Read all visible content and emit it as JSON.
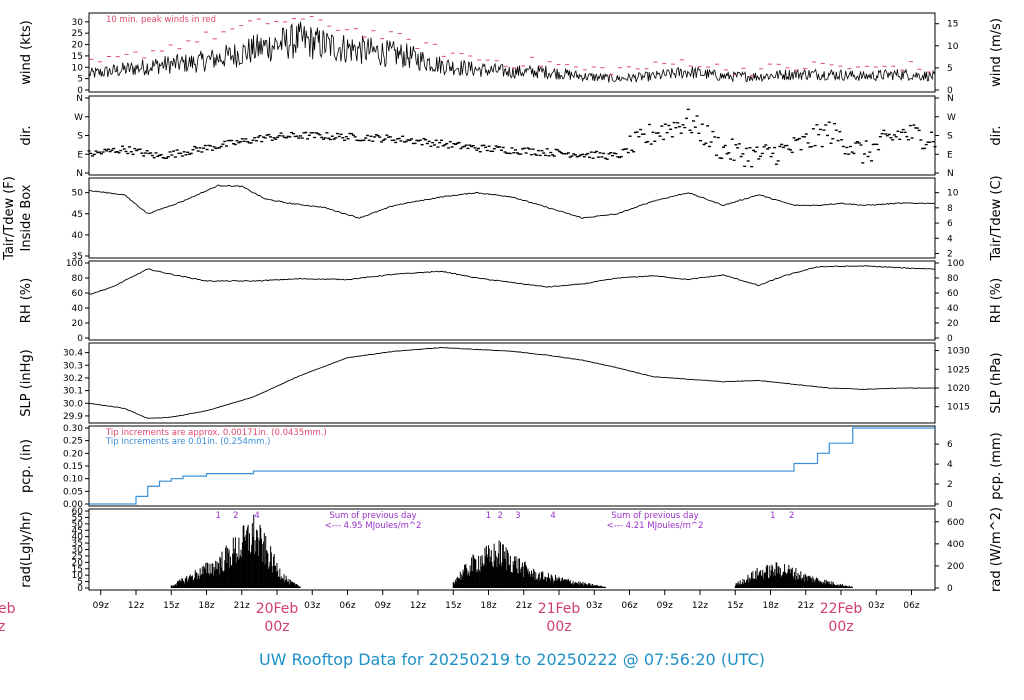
{
  "title": "UW Rooftop Data for 20250219  to  20250222 @ 07:56:20  (UTC)",
  "colors": {
    "peak": "#e04a6a",
    "tip_old": "#e04a6a",
    "tip_new": "#3a8fd8",
    "rad_note": "#9b30c8",
    "date": "#d0406a",
    "title": "#1e90c8"
  },
  "chart_data": [
    {
      "type": "line",
      "name": "wind",
      "ylabel_left": "wind (kts)",
      "ylabel_right": "wind (m/s)",
      "yticks_left": [
        "0",
        "5",
        "10",
        "15",
        "20",
        "25",
        "30"
      ],
      "yticks_right": [
        "0",
        "5",
        "10",
        "15"
      ],
      "ylim": [
        0,
        33
      ],
      "note": "10 min. peak winds in red",
      "series": [
        {
          "name": "wind speed",
          "x_hours": [
            0,
            3,
            6,
            9,
            12,
            15,
            18,
            21,
            24,
            27,
            30,
            33,
            36,
            39,
            42,
            45,
            48,
            51,
            54,
            57,
            60,
            63,
            66,
            69,
            72
          ],
          "values": [
            7,
            9,
            11,
            12,
            15,
            19,
            22,
            19,
            17,
            15,
            11,
            9,
            8,
            8,
            6,
            5,
            6,
            8,
            6,
            6,
            7,
            7,
            6,
            7,
            6
          ]
        },
        {
          "name": "10 min. peak",
          "x_hours": [
            0,
            3,
            6,
            9,
            12,
            15,
            18,
            21,
            24,
            27,
            30,
            33,
            36,
            39,
            42,
            45,
            48,
            51,
            54,
            57,
            60,
            63,
            66,
            69,
            72
          ],
          "values": [
            11,
            14,
            18,
            22,
            26,
            30,
            31,
            28,
            25,
            22,
            17,
            14,
            12,
            12,
            9,
            9,
            10,
            13,
            9,
            9,
            10,
            11,
            9,
            11,
            9
          ]
        }
      ]
    },
    {
      "type": "scatter",
      "name": "dir",
      "ylabel_left": "dir.",
      "ylabel_right": "dir.",
      "yticks_left": [
        "N",
        "E",
        "S",
        "W",
        "N"
      ],
      "yticks_right": [
        "N",
        "E",
        "S",
        "W",
        "N"
      ],
      "ylim": [
        0,
        360
      ],
      "series": [
        {
          "name": "direction",
          "x_hours": [
            0,
            3,
            6,
            9,
            12,
            15,
            18,
            21,
            24,
            27,
            30,
            33,
            36,
            39,
            42,
            45,
            48,
            51,
            54,
            57,
            60,
            63,
            66,
            69,
            72
          ],
          "values": [
            90,
            115,
            80,
            110,
            140,
            170,
            180,
            175,
            170,
            160,
            140,
            120,
            110,
            100,
            90,
            80,
            190,
            250,
            110,
            80,
            120,
            200,
            90,
            190,
            170
          ]
        }
      ]
    },
    {
      "type": "line",
      "name": "temp",
      "ylabel_left": "Inside Box",
      "ylabel_left2": "Tair/Tdew (F)",
      "ylabel_right": "Tair/Tdew (C)",
      "yticks_left": [
        "35",
        "40",
        "45",
        "50"
      ],
      "yticks_right": [
        "2",
        "4",
        "6",
        "8",
        "10"
      ],
      "ylim": [
        35,
        53
      ],
      "series": [
        {
          "name": "Tair",
          "x_hours": [
            0,
            3,
            5,
            8,
            11,
            13,
            15,
            17,
            20,
            23,
            26,
            30,
            33,
            36,
            39,
            42,
            45,
            48,
            51,
            54,
            57,
            60,
            62,
            64,
            66,
            69,
            72
          ],
          "values": [
            50.5,
            49.5,
            45,
            48,
            51.7,
            51.5,
            48.5,
            47.5,
            46.5,
            44,
            47,
            49,
            50,
            49,
            46.5,
            44,
            45,
            48,
            50,
            47,
            49.5,
            47,
            47,
            47.5,
            47,
            47.5,
            47.5
          ]
        }
      ]
    },
    {
      "type": "line",
      "name": "rh",
      "ylabel_left": "RH (%)",
      "ylabel_right": "RH (%)",
      "yticks_left": [
        "0",
        "20",
        "40",
        "60",
        "80",
        "100"
      ],
      "yticks_right": [
        "0",
        "20",
        "40",
        "60",
        "80",
        "100"
      ],
      "ylim": [
        0,
        100
      ],
      "series": [
        {
          "name": "RH",
          "x_hours": [
            0,
            2,
            5,
            7,
            10,
            14,
            18,
            22,
            26,
            30,
            33,
            36,
            39,
            42,
            45,
            48,
            51,
            54,
            57,
            59,
            62,
            66,
            70,
            72
          ],
          "values": [
            58,
            68,
            92,
            85,
            76,
            76,
            79,
            78,
            85,
            89,
            80,
            74,
            68,
            72,
            80,
            83,
            78,
            84,
            70,
            82,
            95,
            96,
            93,
            92
          ]
        }
      ]
    },
    {
      "type": "line",
      "name": "slp",
      "ylabel_left": "SLP (inHg)",
      "ylabel_right": "SLP (hPa)",
      "yticks_left": [
        "29.9",
        "30.0",
        "30.1",
        "30.2",
        "30.3",
        "30.4"
      ],
      "yticks_right": [
        "1015",
        "1020",
        "1025",
        "1030"
      ],
      "ylim": [
        29.86,
        30.46
      ],
      "series": [
        {
          "name": "SLP",
          "x_hours": [
            0,
            3,
            5,
            7,
            10,
            14,
            18,
            22,
            26,
            30,
            34,
            36,
            39,
            42,
            45,
            48,
            51,
            54,
            57,
            60,
            63,
            66,
            69,
            72
          ],
          "values": [
            30.0,
            29.96,
            29.88,
            29.89,
            29.94,
            30.05,
            30.22,
            30.36,
            30.41,
            30.44,
            30.42,
            30.41,
            30.38,
            30.34,
            30.28,
            30.21,
            30.19,
            30.17,
            30.18,
            30.15,
            30.12,
            30.11,
            30.12,
            30.12
          ]
        }
      ]
    },
    {
      "type": "line",
      "name": "pcp",
      "ylabel_left": "pcp. (in)",
      "ylabel_right": "pcp. (mm)",
      "yticks_left": [
        "0.00",
        "0.05",
        "0.10",
        "0.15",
        "0.20",
        "0.25",
        "0.30"
      ],
      "yticks_right": [
        "0",
        "2",
        "4",
        "6"
      ],
      "ylim": [
        0,
        0.3
      ],
      "note_old": "Tip increments are approx. 0.00171in. (0.0435mm.)",
      "note_new": "Tip increments are 0.01in. (0.254mm.)",
      "series": [
        {
          "name": "precip",
          "x_hours": [
            0,
            3,
            4,
            5,
            6,
            7,
            8,
            10,
            14,
            58,
            60,
            62,
            63,
            65,
            72
          ],
          "values": [
            0,
            0,
            0.03,
            0.07,
            0.09,
            0.1,
            0.11,
            0.12,
            0.13,
            0.13,
            0.16,
            0.2,
            0.24,
            0.3,
            0.3
          ]
        }
      ]
    },
    {
      "type": "area",
      "name": "rad",
      "ylabel_left": "rad(Lgly/hr)",
      "ylabel_right": "rad (W/m^2)",
      "yticks_left": [
        "0",
        "5",
        "10",
        "15",
        "20",
        "25",
        "30",
        "35",
        "40",
        "45",
        "50",
        "55",
        "60"
      ],
      "yticks_right": [
        "0",
        "200",
        "400",
        "600"
      ],
      "ylim": [
        0,
        60
      ],
      "days": [
        {
          "x_hours": [
            7,
            9,
            11,
            13,
            14,
            15,
            16,
            17,
            18
          ],
          "values": [
            2,
            12,
            22,
            40,
            50,
            35,
            18,
            6,
            1
          ]
        },
        {
          "x_hours": [
            31,
            33,
            35,
            37,
            38,
            40,
            42,
            44
          ],
          "values": [
            6,
            25,
            32,
            18,
            12,
            8,
            4,
            1
          ]
        },
        {
          "x_hours": [
            55,
            57,
            59,
            61,
            63,
            65
          ],
          "values": [
            3,
            14,
            18,
            10,
            5,
            1
          ]
        }
      ],
      "markers": [
        {
          "x_hours": 11,
          "label": "1"
        },
        {
          "x_hours": 12.5,
          "label": "2"
        },
        {
          "x_hours": 14.3,
          "label": "4"
        },
        {
          "x_hours": 34,
          "label": "1"
        },
        {
          "x_hours": 35,
          "label": "2"
        },
        {
          "x_hours": 36.5,
          "label": "3"
        },
        {
          "x_hours": 39.5,
          "label": "4"
        },
        {
          "x_hours": 58.2,
          "label": "1"
        },
        {
          "x_hours": 59.8,
          "label": "2"
        }
      ],
      "sum_notes": [
        {
          "x_hours": 24,
          "line1": "Sum of previous day",
          "line2": "<--- 4.95 MJoules/m^2"
        },
        {
          "x_hours": 48,
          "line1": "Sum of previous day",
          "line2": "<--- 4.21 MJoules/m^2"
        }
      ]
    }
  ],
  "xaxis": {
    "ticks": [
      {
        "h": 1,
        "l": "09z"
      },
      {
        "h": 4,
        "l": "12z"
      },
      {
        "h": 7,
        "l": "15z"
      },
      {
        "h": 10,
        "l": "18z"
      },
      {
        "h": 13,
        "l": "21z"
      },
      {
        "h": 19,
        "l": "03z"
      },
      {
        "h": 22,
        "l": "06z"
      },
      {
        "h": 25,
        "l": "09z"
      },
      {
        "h": 28,
        "l": "12z"
      },
      {
        "h": 31,
        "l": "15z"
      },
      {
        "h": 34,
        "l": "18z"
      },
      {
        "h": 37,
        "l": "21z"
      },
      {
        "h": 43,
        "l": "03z"
      },
      {
        "h": 46,
        "l": "06z"
      },
      {
        "h": 49,
        "l": "09z"
      },
      {
        "h": 52,
        "l": "12z"
      },
      {
        "h": 55,
        "l": "15z"
      },
      {
        "h": 58,
        "l": "18z"
      },
      {
        "h": 61,
        "l": "21z"
      },
      {
        "h": 67,
        "l": "03z"
      },
      {
        "h": 70,
        "l": "06z"
      }
    ],
    "dates": [
      {
        "h": 16,
        "date": "20Feb",
        "time": "00z"
      },
      {
        "h": 40,
        "date": "21Feb",
        "time": "00z"
      },
      {
        "h": 64,
        "date": "22Feb",
        "time": "00z"
      }
    ],
    "cut_date": {
      "date": "eb",
      "time": "z"
    }
  }
}
